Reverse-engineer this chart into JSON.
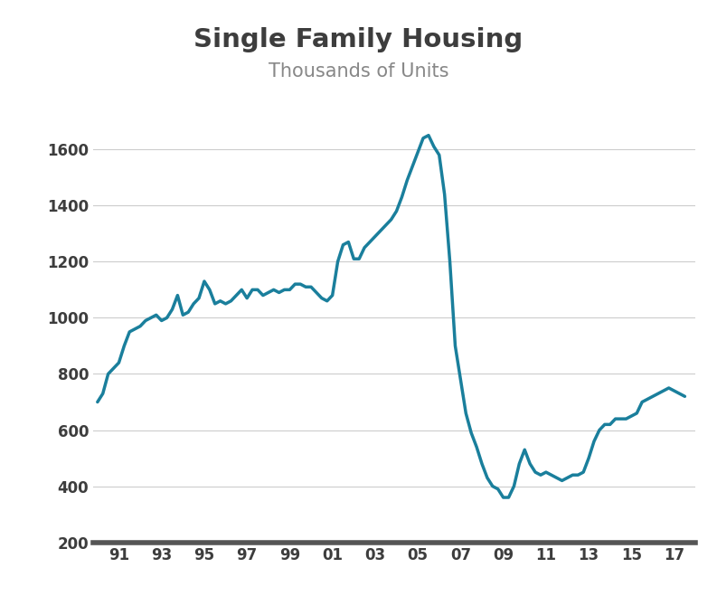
{
  "title": "Single Family Housing",
  "subtitle": "Thousands of Units",
  "title_color": "#3d3d3d",
  "subtitle_color": "#888888",
  "line_color": "#1a7f9c",
  "line_width": 2.5,
  "background_color": "#ffffff",
  "grid_color": "#cccccc",
  "axis_label_color": "#3d3d3d",
  "x_tick_labels": [
    "91",
    "93",
    "95",
    "97",
    "99",
    "01",
    "03",
    "05",
    "07",
    "09",
    "11",
    "13",
    "15",
    "17"
  ],
  "x_tick_positions": [
    1991,
    1993,
    1995,
    1997,
    1999,
    2001,
    2003,
    2005,
    2007,
    2009,
    2011,
    2013,
    2015,
    2017
  ],
  "ylim": [
    200,
    1750
  ],
  "xlim": [
    1989.8,
    2018.0
  ],
  "yticks": [
    200,
    400,
    600,
    800,
    1000,
    1200,
    1400,
    1600
  ],
  "years": [
    1990.0,
    1990.25,
    1990.5,
    1990.75,
    1991.0,
    1991.25,
    1991.5,
    1991.75,
    1992.0,
    1992.25,
    1992.5,
    1992.75,
    1993.0,
    1993.25,
    1993.5,
    1993.75,
    1994.0,
    1994.25,
    1994.5,
    1994.75,
    1995.0,
    1995.25,
    1995.5,
    1995.75,
    1996.0,
    1996.25,
    1996.5,
    1996.75,
    1997.0,
    1997.25,
    1997.5,
    1997.75,
    1998.0,
    1998.25,
    1998.5,
    1998.75,
    1999.0,
    1999.25,
    1999.5,
    1999.75,
    2000.0,
    2000.25,
    2000.5,
    2000.75,
    2001.0,
    2001.25,
    2001.5,
    2001.75,
    2002.0,
    2002.25,
    2002.5,
    2002.75,
    2003.0,
    2003.25,
    2003.5,
    2003.75,
    2004.0,
    2004.25,
    2004.5,
    2004.75,
    2005.0,
    2005.25,
    2005.5,
    2005.75,
    2006.0,
    2006.25,
    2006.5,
    2006.75,
    2007.0,
    2007.25,
    2007.5,
    2007.75,
    2008.0,
    2008.25,
    2008.5,
    2008.75,
    2009.0,
    2009.25,
    2009.5,
    2009.75,
    2010.0,
    2010.25,
    2010.5,
    2010.75,
    2011.0,
    2011.25,
    2011.5,
    2011.75,
    2012.0,
    2012.25,
    2012.5,
    2012.75,
    2013.0,
    2013.25,
    2013.5,
    2013.75,
    2014.0,
    2014.25,
    2014.5,
    2014.75,
    2015.0,
    2015.25,
    2015.5,
    2015.75,
    2016.0,
    2016.25,
    2016.5,
    2016.75,
    2017.0,
    2017.25,
    2017.5
  ],
  "values": [
    700,
    730,
    800,
    820,
    840,
    900,
    950,
    960,
    970,
    990,
    1000,
    1010,
    990,
    1000,
    1030,
    1080,
    1010,
    1020,
    1050,
    1070,
    1130,
    1100,
    1050,
    1060,
    1050,
    1060,
    1080,
    1100,
    1070,
    1100,
    1100,
    1080,
    1090,
    1100,
    1090,
    1100,
    1100,
    1120,
    1120,
    1110,
    1110,
    1090,
    1070,
    1060,
    1080,
    1200,
    1260,
    1270,
    1210,
    1210,
    1250,
    1270,
    1290,
    1310,
    1330,
    1350,
    1380,
    1430,
    1490,
    1540,
    1590,
    1640,
    1650,
    1610,
    1580,
    1440,
    1200,
    900,
    780,
    660,
    590,
    540,
    480,
    430,
    400,
    390,
    360,
    360,
    400,
    480,
    530,
    480,
    450,
    440,
    450,
    440,
    430,
    420,
    430,
    440,
    440,
    450,
    500,
    560,
    600,
    620,
    620,
    640,
    640,
    640,
    650,
    660,
    700,
    710,
    720,
    730,
    740,
    750,
    740,
    730,
    720
  ]
}
